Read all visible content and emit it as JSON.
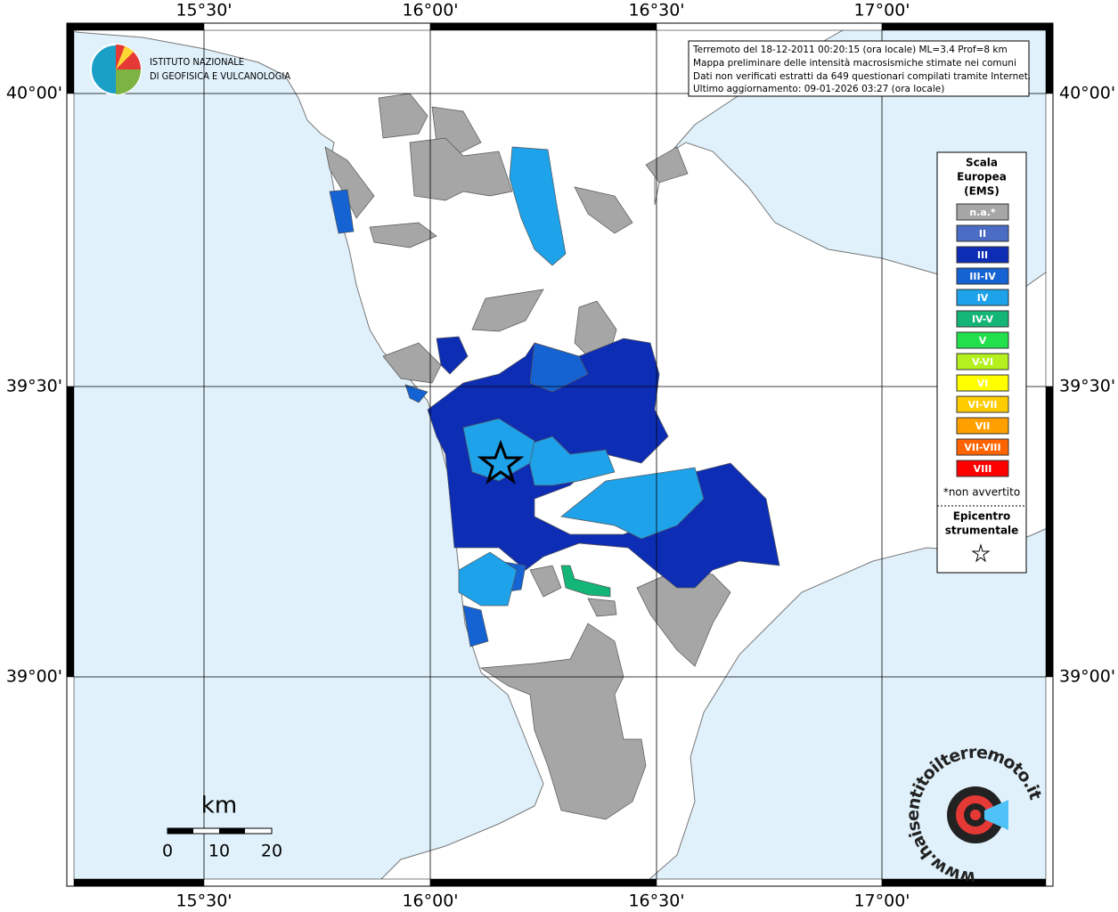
{
  "header": {
    "lines": [
      "Terremoto del 18-12-2011 00:20:15 (ora locale) ML=3.4 Prof=8 km",
      "Mappa preliminare delle intensità macrosismiche stimate nei comuni",
      "Dati non verificati estratti da 649 questionari compilati tramite Internet.",
      "Ultimo aggiornamento: 09-01-2026 03:27 (ora locale)"
    ]
  },
  "logo": {
    "lines": [
      "ISTITUTO NAZIONALE",
      "DI GEOFISICA E VULCANOLOGIA"
    ]
  },
  "longitudes": [
    "15°30'",
    "16°00'",
    "16°30'",
    "17°00'"
  ],
  "latitudes": [
    "40°00'",
    "39°30'",
    "39°00'"
  ],
  "legend": {
    "title": [
      "Scala",
      "Europea",
      "(EMS)"
    ],
    "items": [
      {
        "label": "n.a.*",
        "color": "#a6a6a6"
      },
      {
        "label": "II",
        "color": "#4a6cc4"
      },
      {
        "label": "III",
        "color": "#0d2db4"
      },
      {
        "label": "III-IV",
        "color": "#1562d2"
      },
      {
        "label": "IV",
        "color": "#1ea2ea"
      },
      {
        "label": "IV-V",
        "color": "#14b678"
      },
      {
        "label": "V",
        "color": "#22e04c"
      },
      {
        "label": "V-VI",
        "color": "#b4f01e"
      },
      {
        "label": "VI",
        "color": "#ffff00"
      },
      {
        "label": "VI-VII",
        "color": "#ffcc00"
      },
      {
        "label": "VII",
        "color": "#ffa000"
      },
      {
        "label": "VII-VIII",
        "color": "#ff6400"
      },
      {
        "label": "VIII",
        "color": "#ff0000"
      }
    ],
    "note": "*non avvertito",
    "epicenter": [
      "Epicentro",
      "strumentale"
    ]
  },
  "scale": {
    "unit": "km",
    "labels": [
      "0",
      "10",
      "20"
    ]
  },
  "watermark": "www.haisentitoilterremoto.it"
}
